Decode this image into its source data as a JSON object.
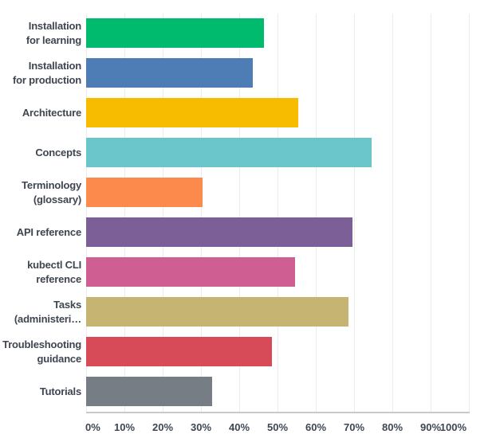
{
  "chart_data": {
    "type": "bar",
    "orientation": "horizontal",
    "title": "",
    "xlabel": "",
    "ylabel": "",
    "xlim": [
      0,
      100
    ],
    "grid": true,
    "legend": false,
    "unit": "%",
    "categories": [
      "Installation for learning",
      "Installation for production",
      "Architecture",
      "Concepts",
      "Terminology (glossary)",
      "API reference",
      "kubectl CLI reference",
      "Tasks (administeri…",
      "Troubleshooting guidance",
      "Tutorials"
    ],
    "category_lines": [
      [
        "Installation",
        "for learning"
      ],
      [
        "Installation",
        "for production"
      ],
      [
        "Architecture"
      ],
      [
        "Concepts"
      ],
      [
        "Terminology",
        "(glossary)"
      ],
      [
        "API reference"
      ],
      [
        "kubectl CLI",
        "reference"
      ],
      [
        "Tasks",
        "(administeri…"
      ],
      [
        "Troubleshooting",
        "guidance"
      ],
      [
        "Tutorials"
      ]
    ],
    "values": [
      46.5,
      43.5,
      55.5,
      74.5,
      30.5,
      69.5,
      54.5,
      68.5,
      48.5,
      33
    ],
    "bar_colors": [
      "#00bb6d",
      "#4e7cb5",
      "#f7bb00",
      "#6bc6cc",
      "#fc8a4d",
      "#7b5f96",
      "#cf5e92",
      "#c6b472",
      "#d74b59",
      "#767d85"
    ],
    "x_ticks": [
      "0%",
      "10%",
      "20%",
      "30%",
      "40%",
      "50%",
      "60%",
      "70%",
      "80%",
      "90%",
      "100%"
    ]
  },
  "styles": {
    "text_color": "#3f4651",
    "grid_color": "#ececee",
    "axis_color": "#c6c9cd",
    "background": "#ffffff"
  }
}
